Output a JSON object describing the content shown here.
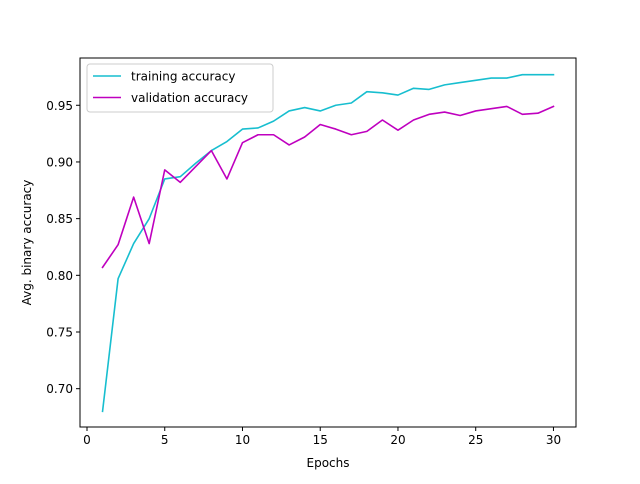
{
  "chart_data": {
    "type": "line",
    "xlabel": "Epochs",
    "ylabel": "Avg. binary accuracy",
    "xlim": [
      -0.45,
      31.45
    ],
    "ylim": [
      0.6662,
      0.9917
    ],
    "xticks": [
      0,
      5,
      10,
      15,
      20,
      25,
      30
    ],
    "yticks": [
      0.7,
      0.75,
      0.8,
      0.85,
      0.9,
      0.95
    ],
    "xtick_labels": [
      "0",
      "5",
      "10",
      "15",
      "20",
      "25",
      "30"
    ],
    "ytick_labels": [
      "0.70",
      "0.75",
      "0.80",
      "0.85",
      "0.90",
      "0.95"
    ],
    "grid": false,
    "legend_position": "top-left",
    "x": [
      1,
      2,
      3,
      4,
      5,
      6,
      7,
      8,
      9,
      10,
      11,
      12,
      13,
      14,
      15,
      16,
      17,
      18,
      19,
      20,
      21,
      22,
      23,
      24,
      25,
      26,
      27,
      28,
      29,
      30
    ],
    "series": [
      {
        "name": "training accuracy",
        "color": "#17becf",
        "values": [
          0.68,
          0.797,
          0.828,
          0.85,
          0.885,
          0.887,
          0.899,
          0.91,
          0.918,
          0.929,
          0.93,
          0.936,
          0.945,
          0.948,
          0.945,
          0.95,
          0.952,
          0.962,
          0.961,
          0.959,
          0.965,
          0.964,
          0.968,
          0.97,
          0.972,
          0.974,
          0.974,
          0.977,
          0.977,
          0.977
        ]
      },
      {
        "name": "validation accuracy",
        "color": "#bf00bf",
        "values": [
          0.807,
          0.827,
          0.869,
          0.828,
          0.893,
          0.882,
          0.896,
          0.91,
          0.885,
          0.917,
          0.924,
          0.924,
          0.915,
          0.922,
          0.933,
          0.929,
          0.924,
          0.927,
          0.937,
          0.928,
          0.937,
          0.942,
          0.944,
          0.941,
          0.945,
          0.947,
          0.949,
          0.942,
          0.943,
          0.949
        ]
      }
    ]
  }
}
